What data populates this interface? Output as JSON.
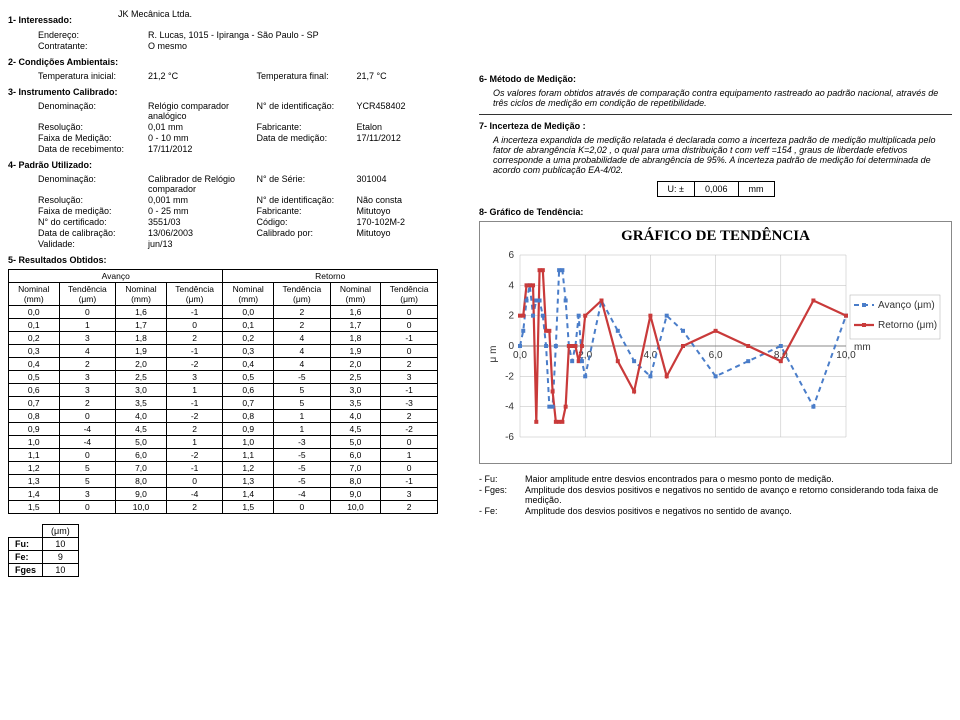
{
  "s1": {
    "title": "1-  Interessado:",
    "interessado": "JK Mecânica Ltda.",
    "endereco_l": "Endereço:",
    "endereco": "R. Lucas, 1015 - Ipiranga - São Paulo  - SP",
    "contratante_l": "Contratante:",
    "contratante": "O mesmo"
  },
  "s2": {
    "title": "2-  Condições Ambientais:",
    "ti_l": "Temperatura inicial:",
    "ti": "21,2 °C",
    "tf_l": "Temperatura final:",
    "tf": "21,7 °C"
  },
  "s3": {
    "title": "3-  Instrumento Calibrado:",
    "den_l": "Denominação:",
    "den": "Relógio comparador analógico",
    "id_l": "N° de identificação:",
    "id": "YCR458402",
    "res_l": "Resolução:",
    "res": "0,01 mm",
    "fab_l": "Fabricante:",
    "fab": "Etalon",
    "fx_l": "Faixa de Medição:",
    "fx": "0 - 10 mm",
    "dm_l": "Data de medição:",
    "dm": "17/11/2012",
    "dr_l": "Data de recebimento:",
    "dr": "17/11/2012"
  },
  "s4": {
    "title": "4-  Padrão Utilizado:",
    "den_l": "Denominação:",
    "den": "Calibrador de Relógio comparador",
    "ns_l": "N° de Série:",
    "ns": "301004",
    "res_l": "Resolução:",
    "res": "0,001 mm",
    "id_l": "N° de identificação:",
    "id": "Não consta",
    "fx_l": "Faixa de medição:",
    "fx": "0 - 25 mm",
    "fab_l": "Fabricante:",
    "fab": "Mitutoyo",
    "nc_l": "N° do certificado:",
    "nc": "3551/03",
    "cod_l": "Código:",
    "cod": "170-102M-2",
    "dc_l": "Data de calibração:",
    "dc": "13/06/2003",
    "cp_l": "Calibrado por:",
    "cp": "Mitutoyo",
    "val_l": "Validade:",
    "val": "jun/13"
  },
  "s5": {
    "title": "5-  Resultados Obtidos:"
  },
  "results": {
    "group_a": "Avanço",
    "group_r": "Retorno",
    "h_nom": "Nominal (mm)",
    "h_ten": "Tendência (μm)",
    "rows": [
      [
        "0,0",
        "0",
        "1,6",
        "-1",
        "0,0",
        "2",
        "1,6",
        "0"
      ],
      [
        "0,1",
        "1",
        "1,7",
        "0",
        "0,1",
        "2",
        "1,7",
        "0"
      ],
      [
        "0,2",
        "3",
        "1,8",
        "2",
        "0,2",
        "4",
        "1,8",
        "-1"
      ],
      [
        "0,3",
        "4",
        "1,9",
        "-1",
        "0,3",
        "4",
        "1,9",
        "0"
      ],
      [
        "0,4",
        "2",
        "2,0",
        "-2",
        "0,4",
        "4",
        "2,0",
        "2"
      ],
      [
        "0,5",
        "3",
        "2,5",
        "3",
        "0,5",
        "-5",
        "2,5",
        "3"
      ],
      [
        "0,6",
        "3",
        "3,0",
        "1",
        "0,6",
        "5",
        "3,0",
        "-1"
      ],
      [
        "0,7",
        "2",
        "3,5",
        "-1",
        "0,7",
        "5",
        "3,5",
        "-3"
      ],
      [
        "0,8",
        "0",
        "4,0",
        "-2",
        "0,8",
        "1",
        "4,0",
        "2"
      ],
      [
        "0,9",
        "-4",
        "4,5",
        "2",
        "0,9",
        "1",
        "4,5",
        "-2"
      ],
      [
        "1,0",
        "-4",
        "5,0",
        "1",
        "1,0",
        "-3",
        "5,0",
        "0"
      ],
      [
        "1,1",
        "0",
        "6,0",
        "-2",
        "1,1",
        "-5",
        "6,0",
        "1"
      ],
      [
        "1,2",
        "5",
        "7,0",
        "-1",
        "1,2",
        "-5",
        "7,0",
        "0"
      ],
      [
        "1,3",
        "5",
        "8,0",
        "0",
        "1,3",
        "-5",
        "8,0",
        "-1"
      ],
      [
        "1,4",
        "3",
        "9,0",
        "-4",
        "1,4",
        "-4",
        "9,0",
        "3"
      ],
      [
        "1,5",
        "0",
        "10,0",
        "2",
        "1,5",
        "0",
        "10,0",
        "2"
      ]
    ],
    "sum_h": "(μm)",
    "fu_l": "Fu:",
    "fu": "10",
    "fe_l": "Fe:",
    "fe": "9",
    "fg_l": "Fges",
    "fg": "10"
  },
  "s6": {
    "title": "6-  Método de Medição:",
    "text": "Os valores foram obtidos através de comparação contra equipamento rastreado ao padrão nacional, através de três ciclos de medição em condição de repetibilidade."
  },
  "s7": {
    "title": "7-  Incerteza de Medição :",
    "text": "A incerteza expandida de medição relatada é declarada como a incerteza padrão de medição multiplicada pelo fator de abrangência K=2,02 , o qual para uma distribuição t com veff =154 , graus de liberdade efetivos corresponde a uma probabilidade de abrangência de 95%. A incerteza padrão de medição foi determinada de acordo com publicação EA-4/02.",
    "u_l": "U: ±",
    "u_v": "0,006",
    "u_u": "mm"
  },
  "s8": {
    "title": "8-  Gráfico de Tendência:"
  },
  "chart": {
    "title": "GRÁFICO DE TENDÊNCIA",
    "xlabel": "mm",
    "ylabel": "μ m",
    "leg_a": "Avanço (μm)",
    "leg_r": "Retorno (μm)",
    "x_ticks": [
      0,
      2,
      4,
      6,
      8,
      10
    ],
    "x_tick_labels": [
      "0,0",
      "2,0",
      "4,0",
      "6,0",
      "8,0",
      "10,0"
    ],
    "y_ticks": [
      -6,
      -4,
      -2,
      0,
      2,
      4,
      6
    ],
    "xmin": 0,
    "xmax": 10,
    "ymin": -6,
    "ymax": 6,
    "av_color": "#4a7dc9",
    "re_color": "#c93a3a",
    "x": [
      0.0,
      0.1,
      0.2,
      0.3,
      0.4,
      0.5,
      0.6,
      0.7,
      0.8,
      0.9,
      1.0,
      1.1,
      1.2,
      1.3,
      1.4,
      1.5,
      1.6,
      1.7,
      1.8,
      1.9,
      2.0,
      2.5,
      3.0,
      3.5,
      4.0,
      4.5,
      5.0,
      6.0,
      7.0,
      8.0,
      9.0,
      10.0
    ],
    "av_y": [
      0,
      1,
      3,
      4,
      2,
      3,
      3,
      2,
      0,
      -4,
      -4,
      0,
      5,
      5,
      3,
      0,
      -1,
      0,
      2,
      -1,
      -2,
      3,
      1,
      -1,
      -2,
      2,
      1,
      -2,
      -1,
      0,
      -4,
      2
    ],
    "re_y": [
      2,
      2,
      4,
      4,
      4,
      -5,
      5,
      5,
      1,
      1,
      -3,
      -5,
      -5,
      -5,
      -4,
      0,
      0,
      0,
      -1,
      0,
      2,
      3,
      -1,
      -3,
      2,
      -2,
      0,
      1,
      0,
      -1,
      3,
      2
    ]
  },
  "notes": {
    "fu_l": "- Fu:",
    "fu": "Maior amplitude entre desvios encontrados para o mesmo ponto de medição.",
    "fg_l": "- Fges:",
    "fg": "Amplitude dos desvios positivos e negativos no sentido de avanço e retorno considerando toda faixa de medição.",
    "fe_l": "- Fe:",
    "fe": "Amplitude dos desvios positivos e negativos no sentido de avanço."
  }
}
